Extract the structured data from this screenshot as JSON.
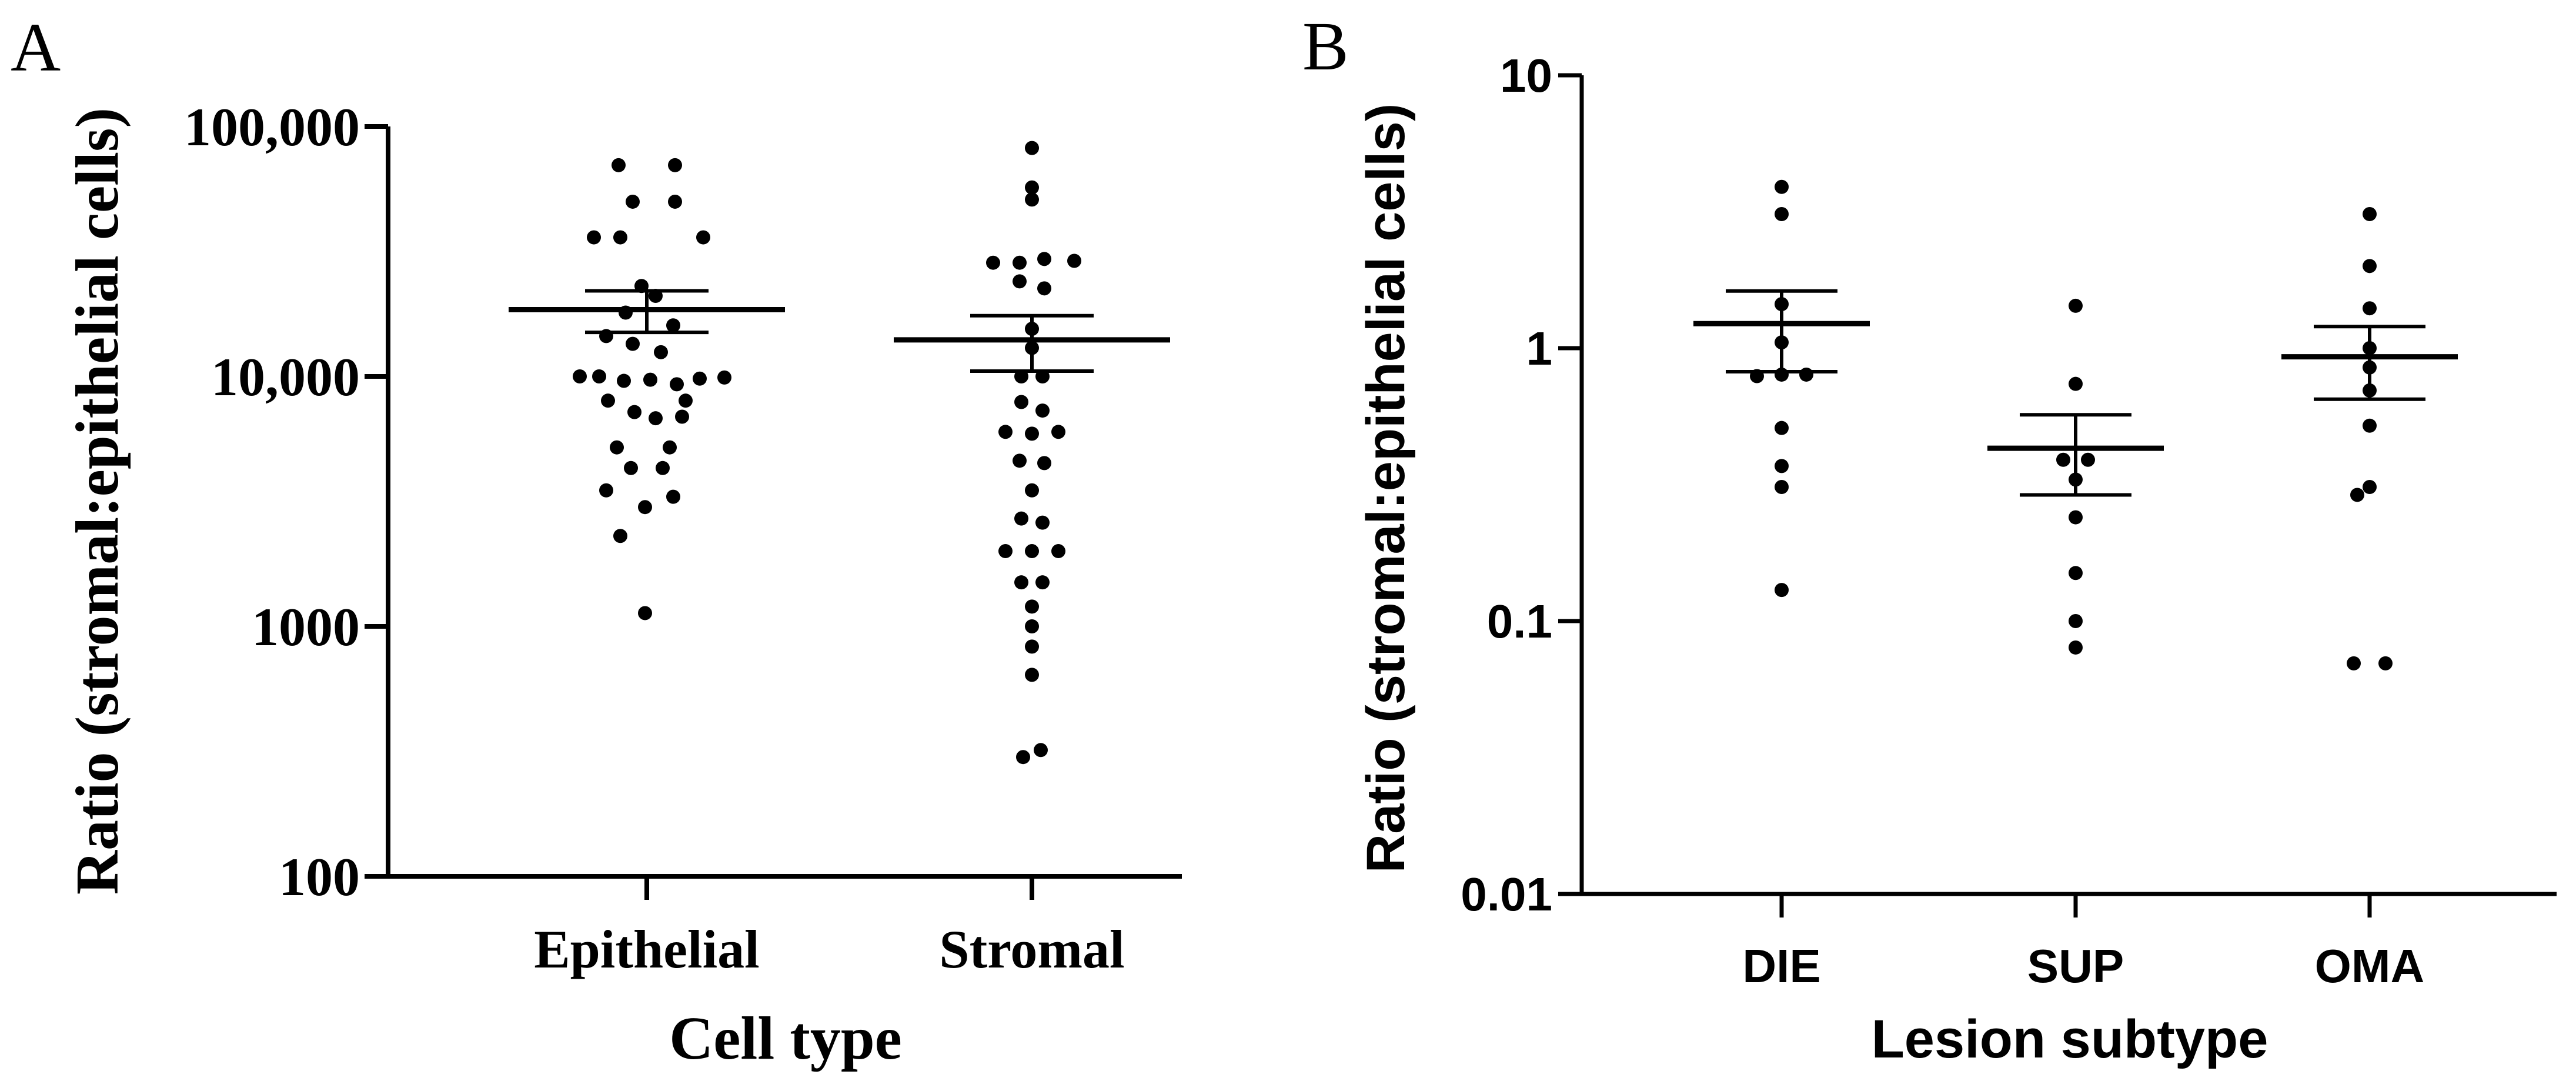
{
  "panels": {
    "a": {
      "letter": "A"
    },
    "b": {
      "letter": "B"
    }
  },
  "chart_data": [
    {
      "type": "scatter",
      "panel": "A",
      "title": "",
      "xlabel": "Cell type",
      "ylabel": "Ratio (stromal:epithelial cells)",
      "yscale": "log",
      "ylim": [
        100,
        100000
      ],
      "yticks": [
        100,
        1000,
        10000,
        100000
      ],
      "ytick_labels": [
        "100",
        "1000",
        "10,000",
        "100,000"
      ],
      "categories": [
        "Epithelial",
        "Stromal"
      ],
      "series": [
        {
          "name": "Epithelial",
          "points": [
            {
              "dx": -0.16,
              "y": 70000
            },
            {
              "dx": 0.16,
              "y": 70000
            },
            {
              "dx": 0.16,
              "y": 50000
            },
            {
              "dx": -0.08,
              "y": 50000
            },
            {
              "dx": -0.3,
              "y": 36000
            },
            {
              "dx": -0.15,
              "y": 36000
            },
            {
              "dx": 0.32,
              "y": 36000
            },
            {
              "dx": -0.03,
              "y": 23000
            },
            {
              "dx": 0.05,
              "y": 21000
            },
            {
              "dx": -0.12,
              "y": 18000
            },
            {
              "dx": 0.15,
              "y": 16000
            },
            {
              "dx": -0.23,
              "y": 14500
            },
            {
              "dx": -0.08,
              "y": 13500
            },
            {
              "dx": 0.08,
              "y": 12500
            },
            {
              "dx": -0.38,
              "y": 10000
            },
            {
              "dx": -0.27,
              "y": 10000
            },
            {
              "dx": -0.13,
              "y": 9600
            },
            {
              "dx": 0.02,
              "y": 9700
            },
            {
              "dx": 0.17,
              "y": 9300
            },
            {
              "dx": 0.3,
              "y": 9800
            },
            {
              "dx": 0.44,
              "y": 9900
            },
            {
              "dx": -0.22,
              "y": 8000
            },
            {
              "dx": 0.22,
              "y": 8000
            },
            {
              "dx": -0.07,
              "y": 7200
            },
            {
              "dx": 0.05,
              "y": 6800
            },
            {
              "dx": 0.2,
              "y": 6900
            },
            {
              "dx": -0.17,
              "y": 5200
            },
            {
              "dx": 0.13,
              "y": 5200
            },
            {
              "dx": -0.09,
              "y": 4300
            },
            {
              "dx": 0.09,
              "y": 4300
            },
            {
              "dx": -0.23,
              "y": 3500
            },
            {
              "dx": 0.15,
              "y": 3300
            },
            {
              "dx": -0.01,
              "y": 3000
            },
            {
              "dx": -0.15,
              "y": 2300
            },
            {
              "dx": -0.01,
              "y": 1130
            }
          ],
          "mean": 18500,
          "sem_upper": 22000,
          "sem_lower": 15000
        },
        {
          "name": "Stromal",
          "points": [
            {
              "dx": 0.0,
              "y": 82000
            },
            {
              "dx": 0.0,
              "y": 57000
            },
            {
              "dx": 0.0,
              "y": 51000
            },
            {
              "dx": -0.22,
              "y": 28500
            },
            {
              "dx": -0.07,
              "y": 28500
            },
            {
              "dx": 0.07,
              "y": 29500
            },
            {
              "dx": 0.24,
              "y": 29000
            },
            {
              "dx": -0.07,
              "y": 24000
            },
            {
              "dx": 0.07,
              "y": 22500
            },
            {
              "dx": 0.0,
              "y": 15500
            },
            {
              "dx": 0.0,
              "y": 13000
            },
            {
              "dx": -0.06,
              "y": 10000
            },
            {
              "dx": 0.06,
              "y": 10000
            },
            {
              "dx": -0.06,
              "y": 7900
            },
            {
              "dx": 0.06,
              "y": 7300
            },
            {
              "dx": -0.15,
              "y": 6000
            },
            {
              "dx": 0.0,
              "y": 5900
            },
            {
              "dx": 0.15,
              "y": 6000
            },
            {
              "dx": -0.07,
              "y": 4600
            },
            {
              "dx": 0.07,
              "y": 4500
            },
            {
              "dx": 0.0,
              "y": 3500
            },
            {
              "dx": -0.06,
              "y": 2700
            },
            {
              "dx": 0.06,
              "y": 2600
            },
            {
              "dx": -0.15,
              "y": 2000
            },
            {
              "dx": 0.0,
              "y": 2000
            },
            {
              "dx": 0.15,
              "y": 2000
            },
            {
              "dx": -0.06,
              "y": 1500
            },
            {
              "dx": 0.06,
              "y": 1500
            },
            {
              "dx": 0.0,
              "y": 1200
            },
            {
              "dx": 0.0,
              "y": 1000
            },
            {
              "dx": 0.0,
              "y": 830
            },
            {
              "dx": 0.0,
              "y": 640
            },
            {
              "dx": -0.05,
              "y": 300
            },
            {
              "dx": 0.05,
              "y": 320
            }
          ],
          "mean": 14000,
          "sem_upper": 17500,
          "sem_lower": 10500
        }
      ]
    },
    {
      "type": "scatter",
      "panel": "B",
      "title": "",
      "xlabel": "Lesion subtype",
      "ylabel": "Ratio (stromal:epithelial cells)",
      "yscale": "log",
      "ylim": [
        0.01,
        10
      ],
      "yticks": [
        0.01,
        0.1,
        1,
        10
      ],
      "ytick_labels": [
        "0.01",
        "0.1",
        "1",
        "10"
      ],
      "categories": [
        "DIE",
        "SUP",
        "OMA"
      ],
      "series": [
        {
          "name": "DIE",
          "points": [
            {
              "dx": 0.0,
              "y": 3.9
            },
            {
              "dx": 0.0,
              "y": 3.1
            },
            {
              "dx": 0.0,
              "y": 1.45
            },
            {
              "dx": 0.0,
              "y": 1.05
            },
            {
              "dx": -0.14,
              "y": 0.79
            },
            {
              "dx": 0.0,
              "y": 0.8
            },
            {
              "dx": 0.14,
              "y": 0.8
            },
            {
              "dx": 0.0,
              "y": 0.51
            },
            {
              "dx": 0.0,
              "y": 0.37
            },
            {
              "dx": 0.0,
              "y": 0.31
            },
            {
              "dx": 0.0,
              "y": 0.13
            }
          ],
          "mean": 1.23,
          "sem_upper": 1.62,
          "sem_lower": 0.82
        },
        {
          "name": "SUP",
          "points": [
            {
              "dx": 0.0,
              "y": 1.43
            },
            {
              "dx": 0.0,
              "y": 0.74
            },
            {
              "dx": -0.07,
              "y": 0.39
            },
            {
              "dx": 0.07,
              "y": 0.39
            },
            {
              "dx": 0.0,
              "y": 0.33
            },
            {
              "dx": 0.0,
              "y": 0.24
            },
            {
              "dx": 0.0,
              "y": 0.15
            },
            {
              "dx": 0.0,
              "y": 0.1
            },
            {
              "dx": 0.0,
              "y": 0.08
            }
          ],
          "mean": 0.43,
          "sem_upper": 0.57,
          "sem_lower": 0.29
        },
        {
          "name": "OMA",
          "points": [
            {
              "dx": 0.0,
              "y": 3.1
            },
            {
              "dx": 0.0,
              "y": 2.0
            },
            {
              "dx": 0.0,
              "y": 1.4
            },
            {
              "dx": 0.0,
              "y": 1.0
            },
            {
              "dx": 0.0,
              "y": 0.85
            },
            {
              "dx": 0.0,
              "y": 0.7
            },
            {
              "dx": 0.0,
              "y": 0.52
            },
            {
              "dx": 0.0,
              "y": 0.31
            },
            {
              "dx": -0.07,
              "y": 0.29
            },
            {
              "dx": -0.09,
              "y": 0.07
            },
            {
              "dx": 0.09,
              "y": 0.07
            }
          ],
          "mean": 0.93,
          "sem_upper": 1.2,
          "sem_lower": 0.65
        }
      ]
    }
  ]
}
